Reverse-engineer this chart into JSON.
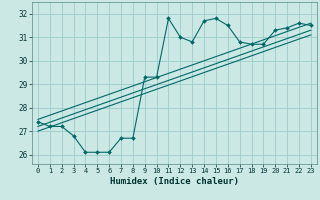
{
  "xlabel": "Humidex (Indice chaleur)",
  "ylabel": "",
  "bg_color": "#cce8e4",
  "line_color": "#006868",
  "grid_color": "#99cccc",
  "xlim": [
    -0.5,
    23.5
  ],
  "ylim": [
    25.6,
    32.5
  ],
  "yticks": [
    26,
    27,
    28,
    29,
    30,
    31,
    32
  ],
  "xticks": [
    0,
    1,
    2,
    3,
    4,
    5,
    6,
    7,
    8,
    9,
    10,
    11,
    12,
    13,
    14,
    15,
    16,
    17,
    18,
    19,
    20,
    21,
    22,
    23
  ],
  "series1_x": [
    0,
    1,
    2,
    3,
    4,
    5,
    6,
    7,
    8,
    9,
    10,
    11,
    12,
    13,
    14,
    15,
    16,
    17,
    18,
    19,
    20,
    21,
    22,
    23
  ],
  "series1_y": [
    27.4,
    27.2,
    27.2,
    26.8,
    26.1,
    26.1,
    26.1,
    26.7,
    26.7,
    29.3,
    29.3,
    31.8,
    31.0,
    30.8,
    31.7,
    31.8,
    31.5,
    30.8,
    30.7,
    30.7,
    31.3,
    31.4,
    31.6,
    31.5
  ],
  "reg_line1_x": [
    0,
    23
  ],
  "reg_line1_y": [
    27.2,
    31.3
  ],
  "reg_line2_x": [
    0,
    23
  ],
  "reg_line2_y": [
    27.5,
    31.6
  ],
  "reg_line3_x": [
    0,
    23
  ],
  "reg_line3_y": [
    27.0,
    31.1
  ]
}
